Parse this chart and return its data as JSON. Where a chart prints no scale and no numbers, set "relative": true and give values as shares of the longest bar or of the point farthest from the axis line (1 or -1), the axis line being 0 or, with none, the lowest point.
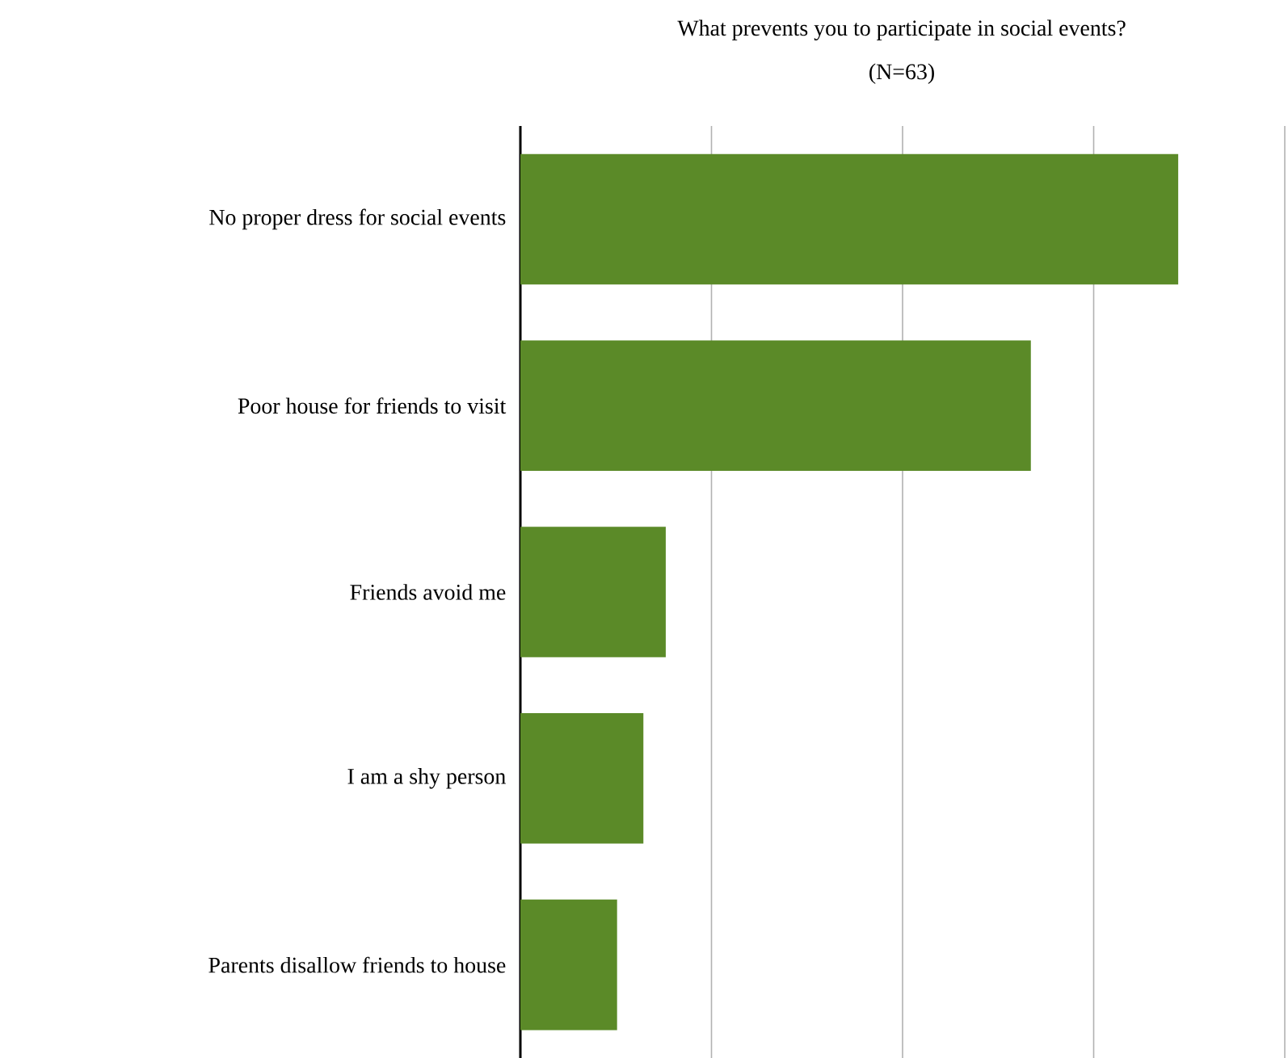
{
  "chart_data": {
    "type": "bar",
    "orientation": "horizontal",
    "relative": true,
    "title": "What prevents you to participate in social events?",
    "subtitle": "(N=63)",
    "categories": [
      "No proper dress for social events",
      "Poor house for friends to visit",
      "Friends avoid me",
      "I am a shy person",
      "Parents disallow friends to house"
    ],
    "values": [
      1,
      0.776,
      0.221,
      0.187,
      0.147
    ],
    "color": "#5b8a28",
    "grid": "x"
  }
}
